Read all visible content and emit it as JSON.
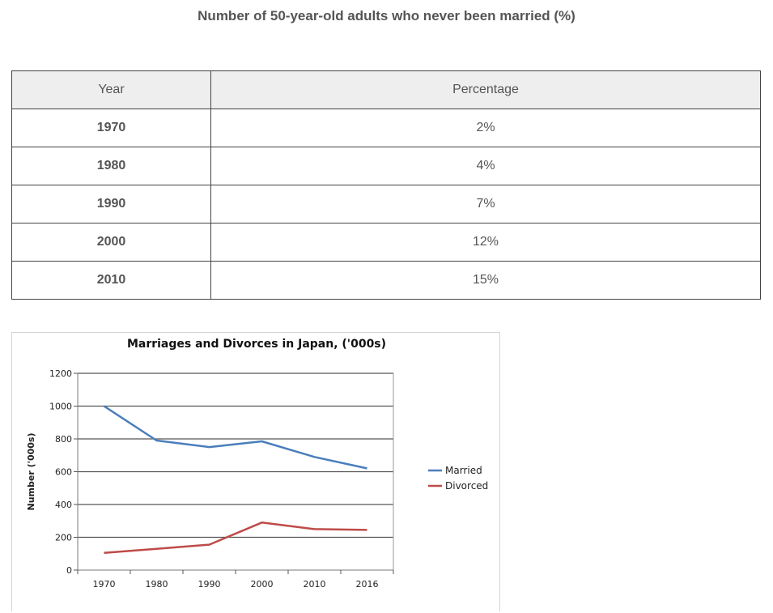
{
  "page": {
    "title": "Number of 50-year-old adults who never been married (%)"
  },
  "table": {
    "headers": [
      "Year",
      "Percentage"
    ],
    "rows": [
      {
        "year": "1970",
        "percentage": "2%"
      },
      {
        "year": "1980",
        "percentage": "4%"
      },
      {
        "year": "1990",
        "percentage": "7%"
      },
      {
        "year": "2000",
        "percentage": "12%"
      },
      {
        "year": "2010",
        "percentage": "15%"
      }
    ]
  },
  "chart_data": {
    "type": "line",
    "title": "Marriages and Divorces in Japan, ('000s)",
    "xlabel": "",
    "ylabel": "Number ('000s)",
    "categories": [
      "1970",
      "1980",
      "1990",
      "2000",
      "2010",
      "2016"
    ],
    "yticks": [
      0,
      200,
      400,
      600,
      800,
      1000,
      1200
    ],
    "ylim": [
      0,
      1200
    ],
    "grid": true,
    "legend_position": "right",
    "series": [
      {
        "name": "Married",
        "color": "#4a7ebb",
        "values": [
          1000,
          790,
          750,
          785,
          690,
          620
        ]
      },
      {
        "name": "Divorced",
        "color": "#be4b48",
        "values": [
          105,
          130,
          155,
          290,
          250,
          245
        ]
      }
    ]
  }
}
